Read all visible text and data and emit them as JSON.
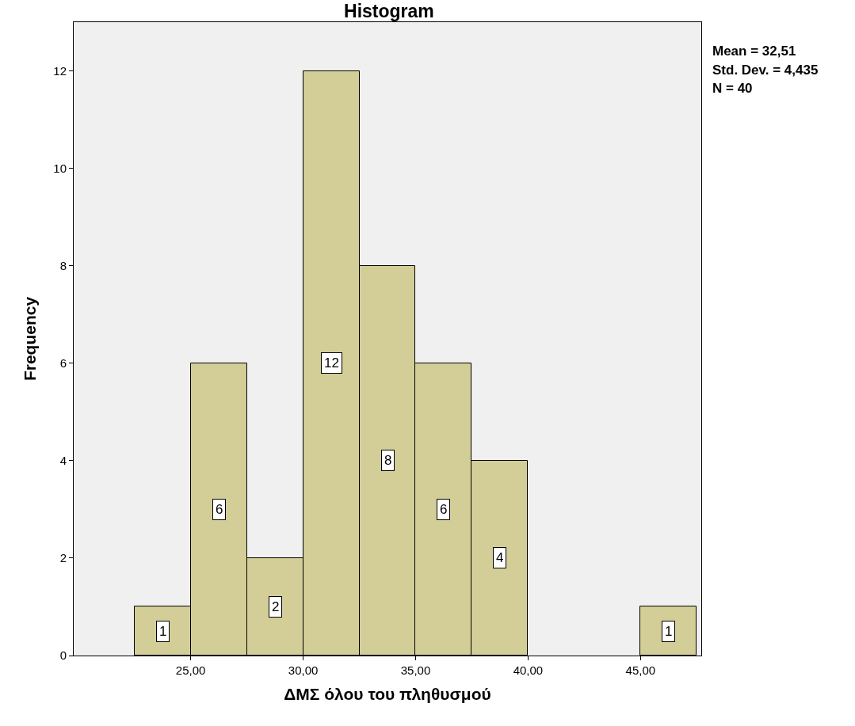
{
  "chart_data": {
    "type": "histogram",
    "title": "Histogram",
    "xlabel": "ΔΜΣ όλου του πληθυσμού",
    "ylabel": "Frequency",
    "bins": [
      22.5,
      25,
      27.5,
      30,
      32.5,
      35,
      37.5,
      40,
      42.5,
      45,
      47.5
    ],
    "values": [
      1,
      6,
      2,
      12,
      8,
      6,
      4,
      0,
      0,
      1
    ],
    "value_labels": [
      "1",
      "6",
      "2",
      "12",
      "8",
      "6",
      "4",
      null,
      null,
      "1"
    ],
    "color": "#d3ce97",
    "xlim": [
      19.8,
      47.7
    ],
    "ylim": [
      0,
      13
    ],
    "xticks": [
      {
        "value": 25,
        "label": "25,00"
      },
      {
        "value": 30,
        "label": "30,00"
      },
      {
        "value": 35,
        "label": "35,00"
      },
      {
        "value": 40,
        "label": "40,00"
      },
      {
        "value": 45,
        "label": "45,00"
      }
    ],
    "yticks": [
      0,
      2,
      4,
      6,
      8,
      10,
      12
    ],
    "annotations": [
      "Mean = 32,51",
      "Std. Dev. = 4,435",
      "N = 40"
    ]
  }
}
